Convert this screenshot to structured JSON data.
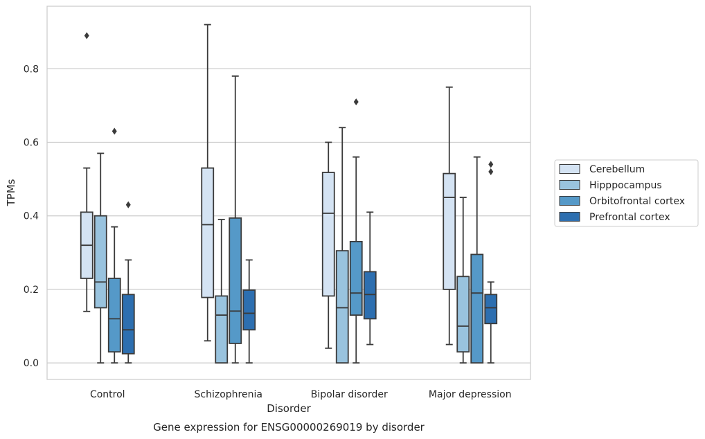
{
  "caption": "Gene expression for ENSG00000269019 by disorder",
  "chart_data": {
    "type": "box",
    "xlabel": "Disorder",
    "ylabel": "TPMs",
    "ylim": [
      -0.045,
      0.97
    ],
    "yticks": [
      "0.0",
      "0.2",
      "0.4",
      "0.6",
      "0.8"
    ],
    "grid": "horizontal",
    "legend_position": "right",
    "categories": [
      "Control",
      "Schizophrenia",
      "Bipolar disorder",
      "Major depression"
    ],
    "series": [
      {
        "name": "Cerebellum",
        "color": "#d4e3f3",
        "boxes": [
          {
            "whisker_low": 0.14,
            "q1": 0.23,
            "median": 0.32,
            "q3": 0.41,
            "whisker_high": 0.53,
            "outliers": [
              0.89
            ]
          },
          {
            "whisker_low": 0.06,
            "q1": 0.178,
            "median": 0.376,
            "q3": 0.53,
            "whisker_high": 0.92,
            "outliers": []
          },
          {
            "whisker_low": 0.04,
            "q1": 0.182,
            "median": 0.407,
            "q3": 0.518,
            "whisker_high": 0.6,
            "outliers": []
          },
          {
            "whisker_low": 0.05,
            "q1": 0.2,
            "median": 0.45,
            "q3": 0.515,
            "whisker_high": 0.75,
            "outliers": []
          }
        ]
      },
      {
        "name": "Hipppocampus",
        "color": "#99c3de",
        "boxes": [
          {
            "whisker_low": 0.0,
            "q1": 0.15,
            "median": 0.22,
            "q3": 0.4,
            "whisker_high": 0.57,
            "outliers": []
          },
          {
            "whisker_low": 0.0,
            "q1": 0.0,
            "median": 0.13,
            "q3": 0.182,
            "whisker_high": 0.39,
            "outliers": []
          },
          {
            "whisker_low": 0.0,
            "q1": 0.0,
            "median": 0.15,
            "q3": 0.305,
            "whisker_high": 0.64,
            "outliers": []
          },
          {
            "whisker_low": 0.0,
            "q1": 0.03,
            "median": 0.1,
            "q3": 0.235,
            "whisker_high": 0.45,
            "outliers": []
          }
        ]
      },
      {
        "name": "Orbitofrontal cortex",
        "color": "#5599c8",
        "boxes": [
          {
            "whisker_low": 0.0,
            "q1": 0.03,
            "median": 0.12,
            "q3": 0.23,
            "whisker_high": 0.37,
            "outliers": [
              0.63
            ]
          },
          {
            "whisker_low": 0.0,
            "q1": 0.053,
            "median": 0.141,
            "q3": 0.394,
            "whisker_high": 0.78,
            "outliers": []
          },
          {
            "whisker_low": 0.0,
            "q1": 0.13,
            "median": 0.19,
            "q3": 0.33,
            "whisker_high": 0.56,
            "outliers": [
              0.71
            ]
          },
          {
            "whisker_low": 0.0,
            "q1": 0.0,
            "median": 0.19,
            "q3": 0.295,
            "whisker_high": 0.56,
            "outliers": []
          }
        ]
      },
      {
        "name": "Prefrontal cortex",
        "color": "#2d6fb0",
        "boxes": [
          {
            "whisker_low": 0.0,
            "q1": 0.025,
            "median": 0.09,
            "q3": 0.186,
            "whisker_high": 0.28,
            "outliers": [
              0.43
            ]
          },
          {
            "whisker_low": 0.0,
            "q1": 0.09,
            "median": 0.135,
            "q3": 0.198,
            "whisker_high": 0.28,
            "outliers": []
          },
          {
            "whisker_low": 0.05,
            "q1": 0.12,
            "median": 0.186,
            "q3": 0.248,
            "whisker_high": 0.41,
            "outliers": []
          },
          {
            "whisker_low": 0.0,
            "q1": 0.107,
            "median": 0.15,
            "q3": 0.186,
            "whisker_high": 0.22,
            "outliers": [
              0.52,
              0.54
            ]
          }
        ]
      }
    ]
  }
}
